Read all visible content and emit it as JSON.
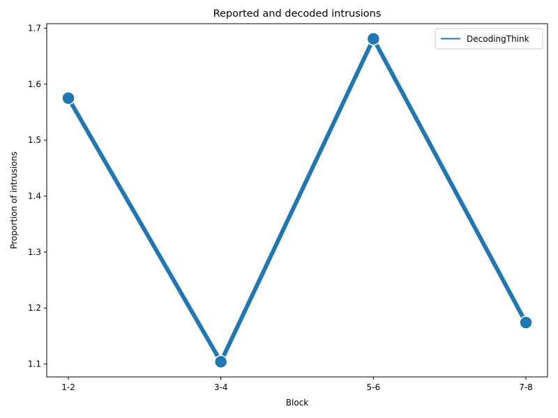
{
  "chart_data": {
    "type": "line",
    "title": "Reported and decoded intrusions",
    "xlabel": "Block",
    "ylabel": "Proportion of intrusions",
    "categories": [
      "1-2",
      "3-4",
      "5-6",
      "7-8"
    ],
    "series": [
      {
        "name": "DecodingThink",
        "values": [
          1.575,
          1.104,
          1.681,
          1.174
        ]
      }
    ],
    "ylim": [
      1.077,
      1.708
    ],
    "yticks": [
      "1.1",
      "1.2",
      "1.3",
      "1.4",
      "1.5",
      "1.6",
      "1.7"
    ],
    "grid": false,
    "legend_position": "top-right",
    "colors": {
      "series": "#1f77b4",
      "marker_edge": "#ffffff",
      "axes": "#000000"
    }
  }
}
